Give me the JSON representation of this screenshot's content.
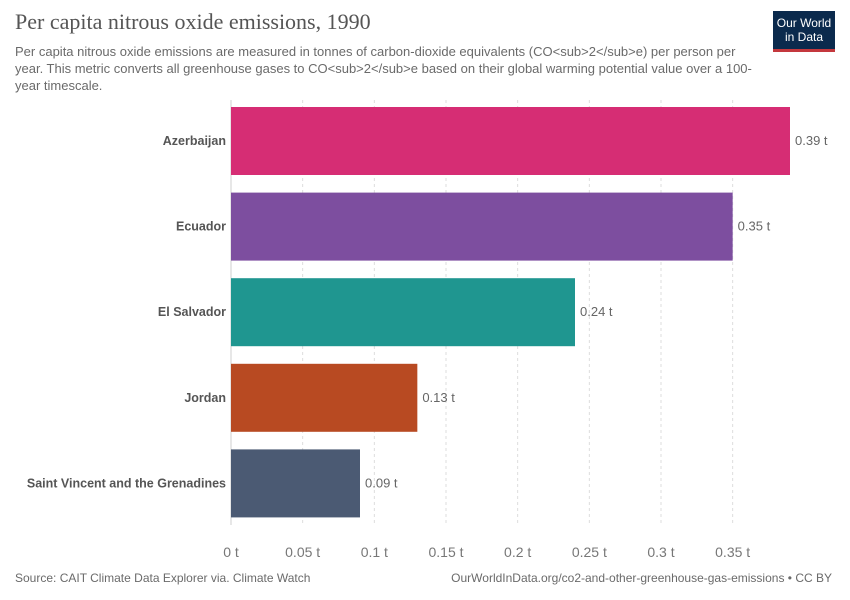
{
  "header": {
    "title": "Per capita nitrous oxide emissions, 1990",
    "subtitle": "Per capita nitrous oxide emissions are measured in tonnes of carbon-dioxide equivalents (CO<sub>2</sub>e) per person per year. This metric converts all greenhouse gases to CO<sub>2</sub>e based on their global warming potential value over a 100-year timescale."
  },
  "logo": {
    "line1": "Our World",
    "line2": "in Data",
    "bg_color": "#0b2a4d",
    "accent_color": "#c4383d"
  },
  "footer": {
    "source": "Source: CAIT Climate Data Explorer via. Climate Watch",
    "link": "OurWorldInData.org/co2-and-other-greenhouse-gas-emissions • CC BY"
  },
  "chart_data": {
    "type": "bar",
    "orientation": "horizontal",
    "categories": [
      "Azerbaijan",
      "Ecuador",
      "El Salvador",
      "Jordan",
      "Saint Vincent and the Grenadines"
    ],
    "values": [
      0.39,
      0.35,
      0.24,
      0.13,
      0.09
    ],
    "value_labels": [
      "0.39 t",
      "0.35 t",
      "0.24 t",
      "0.13 t",
      "0.09 t"
    ],
    "colors": [
      "#d62d74",
      "#7d4e9f",
      "#1f9690",
      "#b84a22",
      "#4b5a73"
    ],
    "xlim": [
      0,
      0.39
    ],
    "x_ticks": [
      0,
      0.05,
      0.1,
      0.15,
      0.2,
      0.25,
      0.3,
      0.35
    ],
    "x_tick_labels": [
      "0 t",
      "0.05 t",
      "0.1 t",
      "0.15 t",
      "0.2 t",
      "0.25 t",
      "0.3 t",
      "0.35 t"
    ],
    "grid": true,
    "grid_style": "dashed vertical"
  }
}
